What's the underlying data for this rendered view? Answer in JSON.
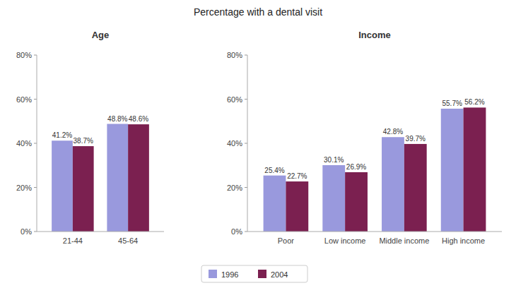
{
  "title": "Percentage with a dental visit",
  "chart_data": [
    {
      "type": "bar",
      "title": "Age",
      "categories": [
        "21-44",
        "45-64"
      ],
      "series": [
        {
          "name": "1996",
          "color": "#9999DD",
          "values": [
            41.2,
            48.8
          ],
          "value_labels": [
            "41.2%",
            "48.8%"
          ]
        },
        {
          "name": "2004",
          "color": "#7B2050",
          "values": [
            38.7,
            48.6
          ],
          "value_labels": [
            "38.7%",
            "48.6%"
          ]
        }
      ],
      "ylim": [
        0,
        80
      ],
      "yticks": [
        {
          "value": 0,
          "label": "0%"
        },
        {
          "value": 20,
          "label": "20%"
        },
        {
          "value": 40,
          "label": "40%"
        },
        {
          "value": 60,
          "label": "60%"
        },
        {
          "value": 80,
          "label": "80%"
        }
      ],
      "grid": false,
      "data_labels": true,
      "legend": "bottom"
    },
    {
      "type": "bar",
      "title": "Income",
      "categories": [
        "Poor",
        "Low income",
        "Middle income",
        "High income"
      ],
      "series": [
        {
          "name": "1996",
          "color": "#9999DD",
          "values": [
            25.4,
            30.1,
            42.8,
            55.7
          ],
          "value_labels": [
            "25.4%",
            "30.1%",
            "42.8%",
            "55.7%"
          ]
        },
        {
          "name": "2004",
          "color": "#7B2050",
          "values": [
            22.7,
            26.9,
            39.7,
            56.2
          ],
          "value_labels": [
            "22.7%",
            "26.9%",
            "39.7%",
            "56.2%"
          ]
        }
      ],
      "ylim": [
        0,
        80
      ],
      "yticks": [
        {
          "value": 0,
          "label": "0%"
        },
        {
          "value": 20,
          "label": "20%"
        },
        {
          "value": 40,
          "label": "40%"
        },
        {
          "value": 60,
          "label": "60%"
        },
        {
          "value": 80,
          "label": "80%"
        }
      ],
      "grid": false,
      "data_labels": true
    }
  ]
}
